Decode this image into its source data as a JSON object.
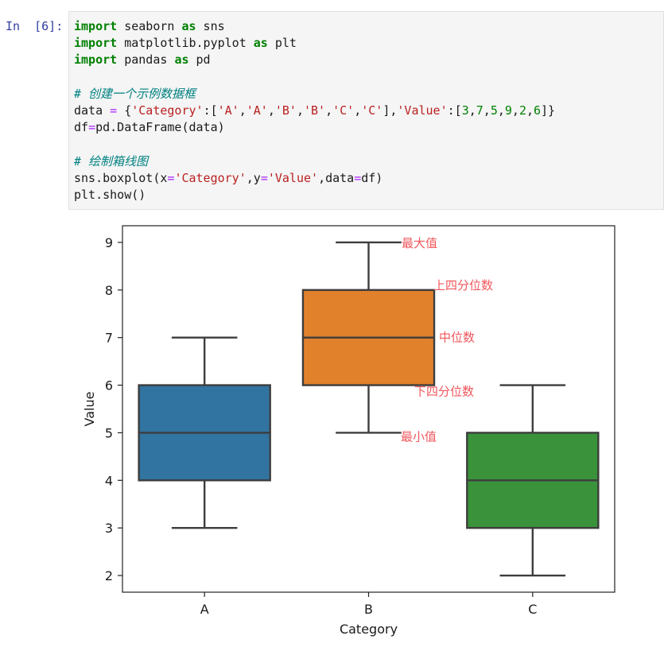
{
  "cell": {
    "prompt": "In  [6]:",
    "code": {
      "line1": {
        "kw1": "import",
        "mod": " seaborn ",
        "kw2": "as",
        "alias": " sns"
      },
      "line2": {
        "kw1": "import",
        "mod": " matplotlib.pyplot ",
        "kw2": "as",
        "alias": " plt"
      },
      "line3": {
        "kw1": "import",
        "mod": " pandas ",
        "kw2": "as",
        "alias": " pd"
      },
      "comment1": "# 创建一个示例数据框",
      "line5": {
        "a": "data ",
        "eq": "=",
        "b": " {",
        "s1": "'Category'",
        "c1": ":[",
        "s2": "'A'",
        "sep1": ",",
        "s3": "'A'",
        "sep2": ",",
        "s4": "'B'",
        "sep3": ",",
        "s5": "'B'",
        "sep4": ",",
        "s6": "'C'",
        "sep5": ",",
        "s7": "'C'",
        "c2": "],",
        "s8": "'Value'",
        "c3": ":[",
        "n1": "3",
        "sep6": ",",
        "n2": "7",
        "sep7": ",",
        "n3": "5",
        "sep8": ",",
        "n4": "9",
        "sep9": ",",
        "n5": "2",
        "sep10": ",",
        "n6": "6",
        "c4": "]}"
      },
      "line6": {
        "a": "df",
        "eq": "=",
        "b": "pd.DataFrame(data)"
      },
      "comment2": "# 绘制箱线图",
      "line8": {
        "a": "sns.boxplot(x",
        "eq1": "=",
        "s1": "'Category'",
        "b": ",y",
        "eq2": "=",
        "s2": "'Value'",
        "c": ",data",
        "eq3": "=",
        "d": "df)"
      },
      "line9": "plt.show()"
    }
  },
  "chart_data": {
    "type": "box",
    "xlabel": "Category",
    "ylabel": "Value",
    "ylim": [
      1.65,
      9.35
    ],
    "yticks": [
      "2",
      "3",
      "4",
      "5",
      "6",
      "7",
      "8",
      "9"
    ],
    "grid": false,
    "categories": [
      "A",
      "B",
      "C"
    ],
    "boxes": [
      {
        "category": "A",
        "min": 3,
        "q1": 4,
        "median": 5,
        "q3": 6,
        "max": 7,
        "color": "#3274a1"
      },
      {
        "category": "B",
        "min": 5,
        "q1": 6,
        "median": 7,
        "q3": 8,
        "max": 9,
        "color": "#e1812c"
      },
      {
        "category": "C",
        "min": 2,
        "q1": 3,
        "median": 4,
        "q3": 5,
        "max": 6,
        "color": "#3a923a"
      }
    ],
    "annotations": [
      {
        "text": "最大值",
        "value": 9
      },
      {
        "text": "上四分位数",
        "value": 8
      },
      {
        "text": "中位数",
        "value": 7
      },
      {
        "text": "下四分位数",
        "value": 6
      },
      {
        "text": "最小值",
        "value": 5
      }
    ],
    "annotation_color": "#f0575c"
  }
}
